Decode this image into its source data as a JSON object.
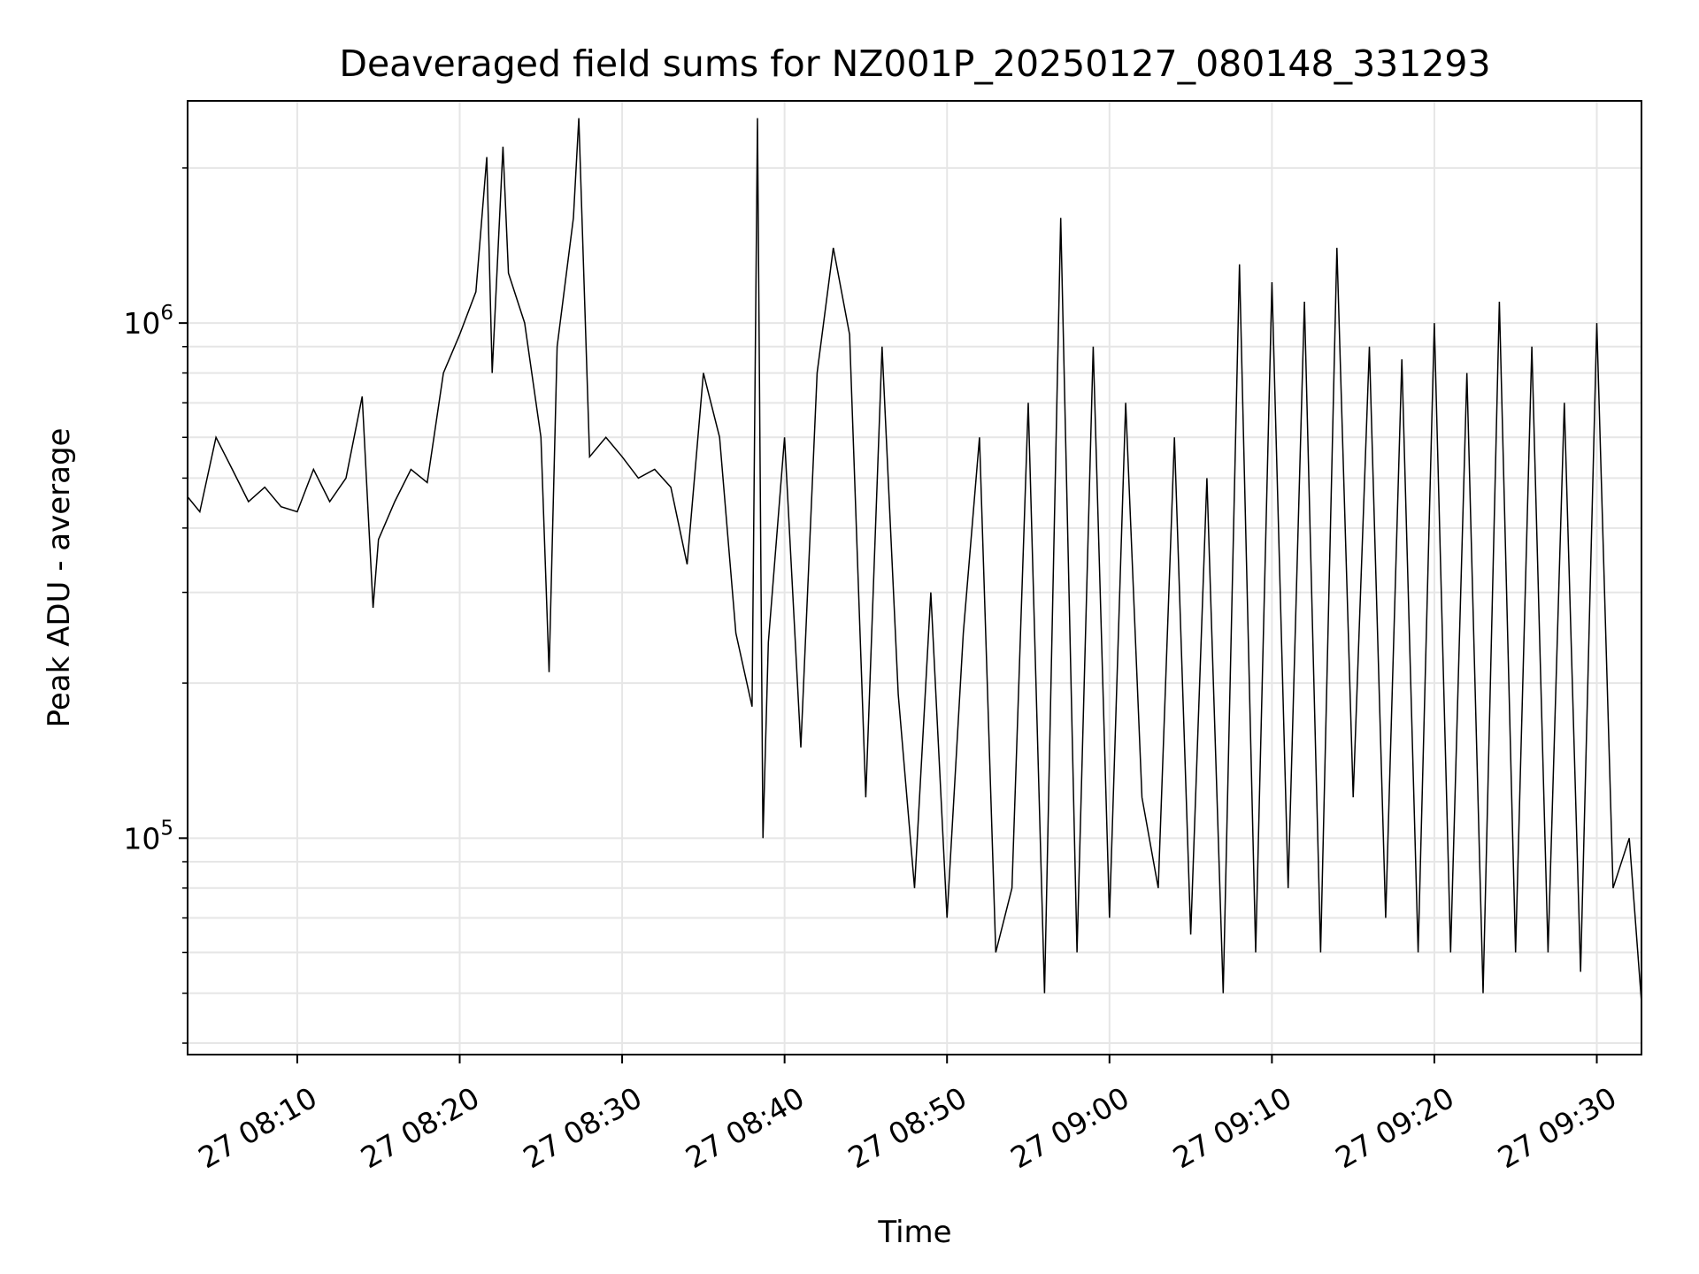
{
  "chart_data": {
    "type": "line",
    "title": "Deaveraged field sums for NZ001P_20250127_080148_331293",
    "xlabel": "Time",
    "ylabel": "Peak ADU - average",
    "yscale": "log",
    "ylim": [
      38000,
      2700000
    ],
    "xlim": [
      "2025-01-27 08:03:15",
      "2025-01-27 09:32:45"
    ],
    "grid": true,
    "line_color": "#000000",
    "grid_color": "#e6e6e6",
    "x_ticks": [
      "27 08:10",
      "27 08:20",
      "27 08:30",
      "27 08:40",
      "27 08:50",
      "27 09:00",
      "27 09:10",
      "27 09:20",
      "27 09:30"
    ],
    "y_ticks": [
      {
        "value": 100000,
        "base": "10",
        "exponent": "5"
      },
      {
        "value": 1000000,
        "base": "10",
        "exponent": "6"
      }
    ],
    "series": [
      {
        "x": [
          "2025-01-27 08:03:15",
          "2025-01-27 08:04:00",
          "2025-01-27 08:05:00",
          "2025-01-27 08:06:00",
          "2025-01-27 08:07:00",
          "2025-01-27 08:08:00",
          "2025-01-27 08:09:00",
          "2025-01-27 08:10:00",
          "2025-01-27 08:11:00",
          "2025-01-27 08:12:00",
          "2025-01-27 08:13:00",
          "2025-01-27 08:14:00",
          "2025-01-27 08:14:40",
          "2025-01-27 08:15:00",
          "2025-01-27 08:16:00",
          "2025-01-27 08:17:00",
          "2025-01-27 08:18:00",
          "2025-01-27 08:19:00",
          "2025-01-27 08:20:00",
          "2025-01-27 08:21:00",
          "2025-01-27 08:21:40",
          "2025-01-27 08:22:00",
          "2025-01-27 08:22:40",
          "2025-01-27 08:23:00",
          "2025-01-27 08:24:00",
          "2025-01-27 08:25:00",
          "2025-01-27 08:25:30",
          "2025-01-27 08:26:00",
          "2025-01-27 08:27:00",
          "2025-01-27 08:27:20",
          "2025-01-27 08:28:00",
          "2025-01-27 08:29:00",
          "2025-01-27 08:30:00",
          "2025-01-27 08:31:00",
          "2025-01-27 08:32:00",
          "2025-01-27 08:33:00",
          "2025-01-27 08:34:00",
          "2025-01-27 08:35:00",
          "2025-01-27 08:36:00",
          "2025-01-27 08:37:00",
          "2025-01-27 08:38:00",
          "2025-01-27 08:38:20",
          "2025-01-27 08:38:40",
          "2025-01-27 08:39:00",
          "2025-01-27 08:40:00",
          "2025-01-27 08:41:00",
          "2025-01-27 08:42:00",
          "2025-01-27 08:43:00",
          "2025-01-27 08:44:00",
          "2025-01-27 08:45:00",
          "2025-01-27 08:46:00",
          "2025-01-27 08:47:00",
          "2025-01-27 08:48:00",
          "2025-01-27 08:49:00",
          "2025-01-27 08:50:00",
          "2025-01-27 08:51:00",
          "2025-01-27 08:52:00",
          "2025-01-27 08:53:00",
          "2025-01-27 08:54:00",
          "2025-01-27 08:55:00",
          "2025-01-27 08:56:00",
          "2025-01-27 08:57:00",
          "2025-01-27 08:58:00",
          "2025-01-27 08:59:00",
          "2025-01-27 09:00:00",
          "2025-01-27 09:01:00",
          "2025-01-27 09:02:00",
          "2025-01-27 09:03:00",
          "2025-01-27 09:04:00",
          "2025-01-27 09:05:00",
          "2025-01-27 09:06:00",
          "2025-01-27 09:07:00",
          "2025-01-27 09:08:00",
          "2025-01-27 09:09:00",
          "2025-01-27 09:10:00",
          "2025-01-27 09:11:00",
          "2025-01-27 09:12:00",
          "2025-01-27 09:13:00",
          "2025-01-27 09:14:00",
          "2025-01-27 09:15:00",
          "2025-01-27 09:16:00",
          "2025-01-27 09:17:00",
          "2025-01-27 09:18:00",
          "2025-01-27 09:19:00",
          "2025-01-27 09:20:00",
          "2025-01-27 09:21:00",
          "2025-01-27 09:22:00",
          "2025-01-27 09:23:00",
          "2025-01-27 09:24:00",
          "2025-01-27 09:25:00",
          "2025-01-27 09:26:00",
          "2025-01-27 09:27:00",
          "2025-01-27 09:28:00",
          "2025-01-27 09:29:00",
          "2025-01-27 09:30:00",
          "2025-01-27 09:31:00",
          "2025-01-27 09:32:00",
          "2025-01-27 09:32:45"
        ],
        "y": [
          460000,
          430000,
          600000,
          520000,
          450000,
          480000,
          440000,
          430000,
          520000,
          450000,
          500000,
          720000,
          280000,
          380000,
          450000,
          520000,
          490000,
          800000,
          950000,
          1150000,
          2100000,
          800000,
          2200000,
          1250000,
          1000000,
          600000,
          210000,
          900000,
          1600000,
          2500000,
          550000,
          600000,
          550000,
          500000,
          520000,
          480000,
          340000,
          800000,
          600000,
          250000,
          180000,
          2500000,
          100000,
          240000,
          600000,
          150000,
          800000,
          1400000,
          950000,
          120000,
          900000,
          190000,
          80000,
          300000,
          70000,
          250000,
          600000,
          60000,
          80000,
          700000,
          50000,
          1600000,
          60000,
          900000,
          70000,
          700000,
          120000,
          80000,
          600000,
          65000,
          500000,
          50000,
          1300000,
          60000,
          1200000,
          80000,
          1100000,
          60000,
          1400000,
          120000,
          900000,
          70000,
          850000,
          60000,
          1000000,
          60000,
          800000,
          50000,
          1100000,
          60000,
          900000,
          60000,
          700000,
          55000,
          1000000,
          80000,
          100000,
          48000
        ],
        "x_note_hidden": false
      }
    ]
  }
}
